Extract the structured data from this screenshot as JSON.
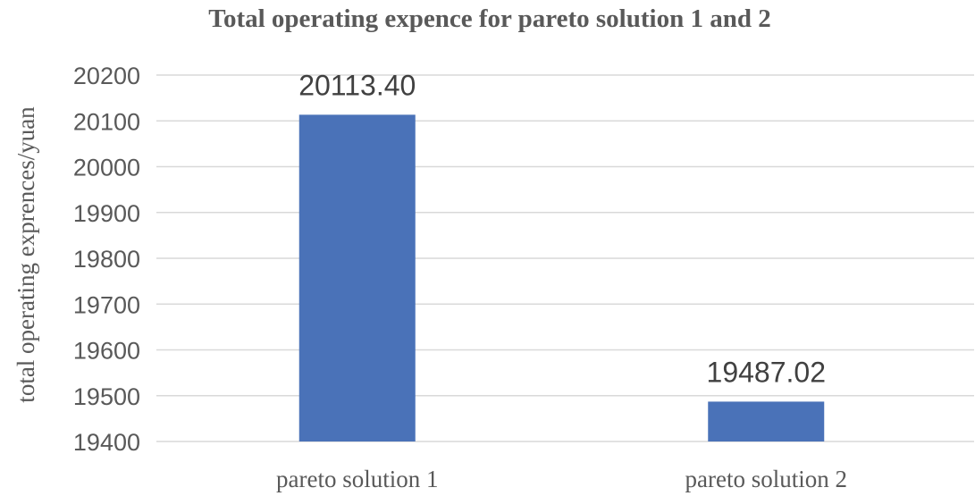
{
  "chart_data": {
    "type": "bar",
    "title": "Total operating expence for pareto solution 1 and 2",
    "xlabel": "",
    "ylabel": "total operating exprences/yuan",
    "categories": [
      "pareto solution 1",
      "pareto solution 2"
    ],
    "values": [
      20113.4,
      19487.02
    ],
    "data_labels": [
      "20113.40",
      "19487.02"
    ],
    "ylim": [
      19400,
      20200
    ],
    "yticks": [
      19400,
      19500,
      19600,
      19700,
      19800,
      19900,
      20000,
      20100,
      20200
    ],
    "grid": true,
    "legend": "none",
    "bar_color": "#4a72b8"
  }
}
